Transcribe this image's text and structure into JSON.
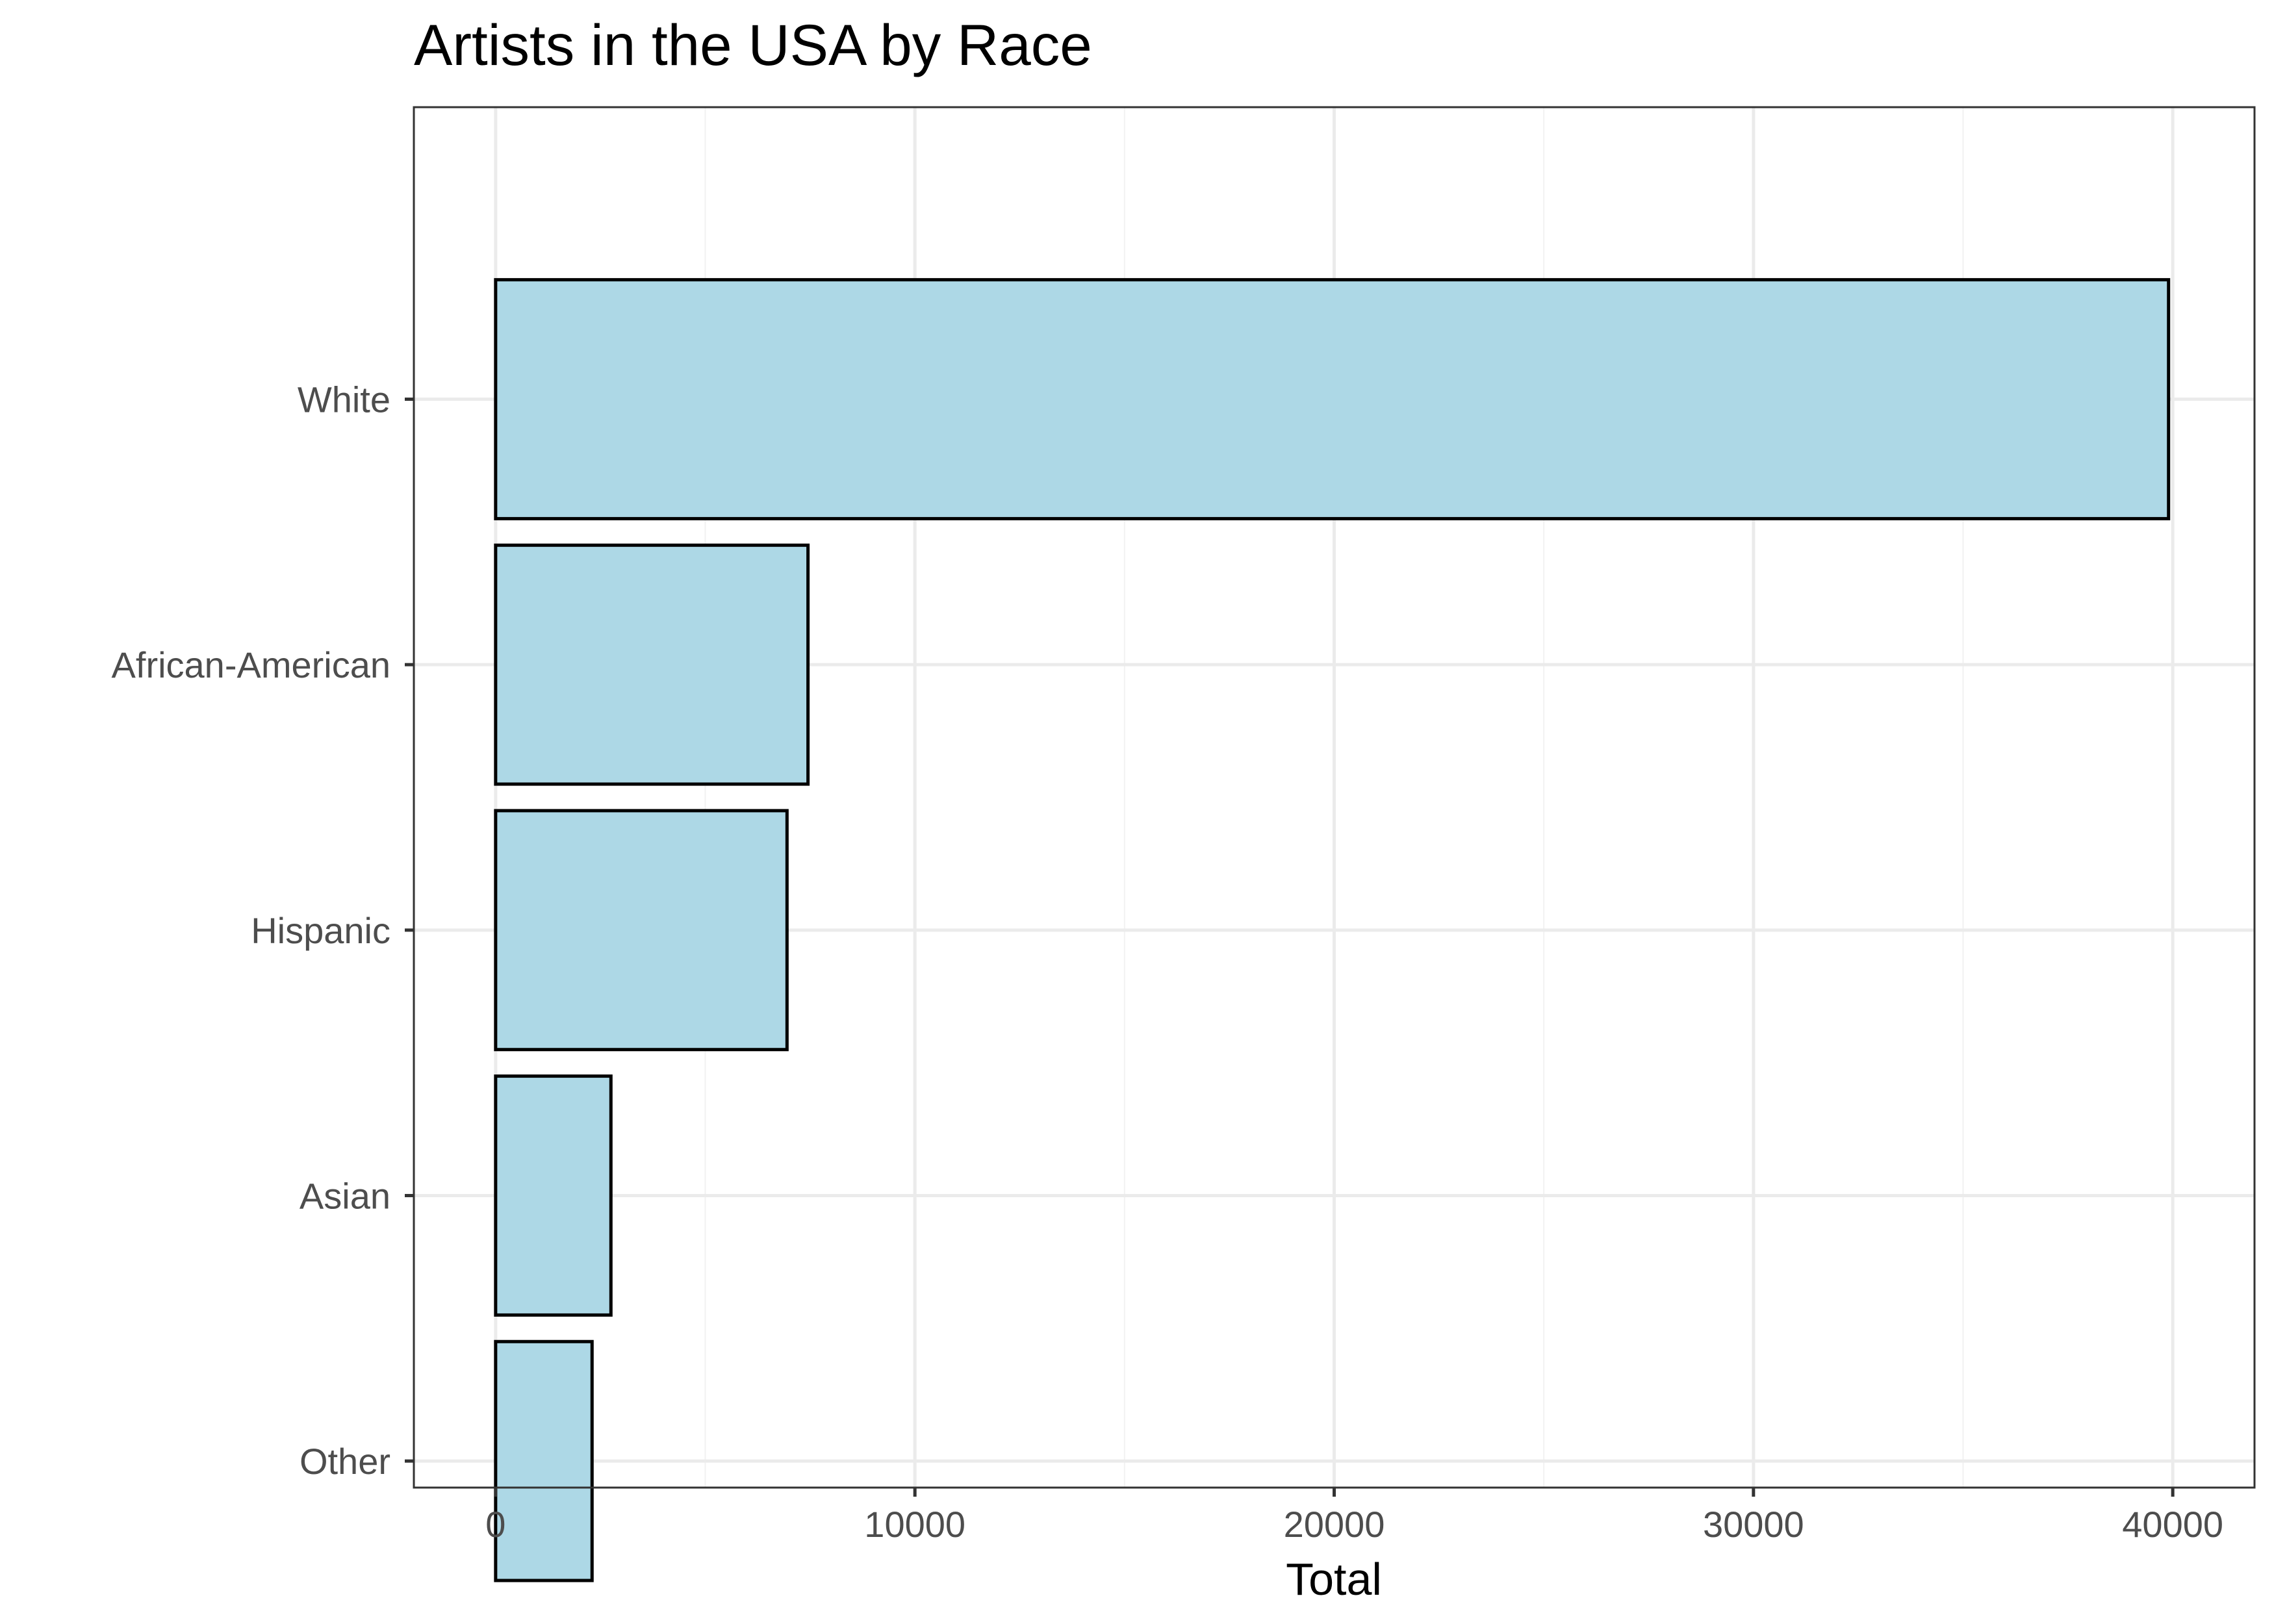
{
  "chart_data": {
    "type": "bar",
    "orientation": "horizontal",
    "title": "Artists in the USA by Race",
    "xlabel": "Total",
    "ylabel": "",
    "categories": [
      "White",
      "African-American",
      "Hispanic",
      "Asian",
      "Other"
    ],
    "values": [
      39900,
      7450,
      6950,
      2750,
      2300
    ],
    "xlim": [
      -1950,
      41950
    ],
    "xticks": [
      0,
      10000,
      20000,
      30000,
      40000
    ],
    "grid": true,
    "legend": "none",
    "bar_fill": "#add8e6",
    "bar_outline": "#000000"
  }
}
